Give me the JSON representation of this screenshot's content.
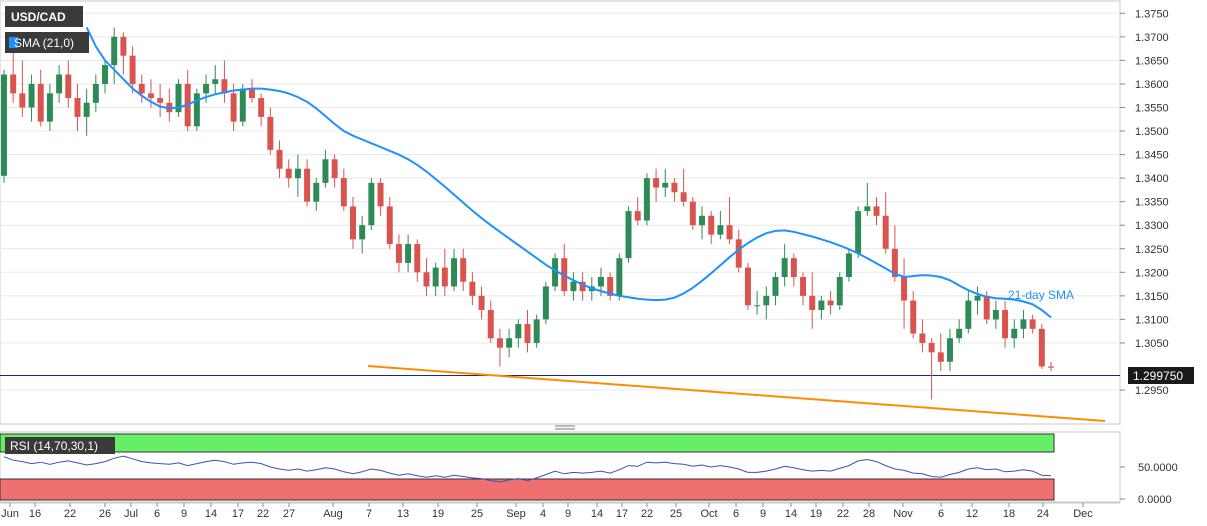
{
  "chart_data": {
    "type": "candlestick",
    "symbol_label": "USD/CAD",
    "sma_label": "SMA (21,0)",
    "sma_annotation": "21-day SMA",
    "current_price": "1.299750",
    "current_value": 1.29975,
    "price_axis": {
      "min": 1.288,
      "max": 1.3774,
      "ticks": [
        "1.3750",
        "1.3700",
        "1.3650",
        "1.3600",
        "1.3550",
        "1.3500",
        "1.3450",
        "1.3400",
        "1.3350",
        "1.3300",
        "1.3250",
        "1.3200",
        "1.3150",
        "1.3100",
        "1.3050",
        "1.2950"
      ]
    },
    "date_ticks": [
      "Jun",
      "16",
      "22",
      "26",
      "Jul",
      "6",
      "9",
      "14",
      "17",
      "22",
      "27",
      "Aug",
      "7",
      "13",
      "19",
      "25",
      "Sep",
      "4",
      "9",
      "14",
      "17",
      "22",
      "25",
      "Oct",
      "6",
      "9",
      "14",
      "19",
      "22",
      "28",
      "Nov",
      "6",
      "12",
      "18",
      "24",
      "Dec"
    ],
    "colors": {
      "up": "#2e8b57",
      "down": "#d9534f",
      "sma": "#1e90ff",
      "trend": "#ff8c00",
      "rsi_line": "#3b4fc4",
      "overbought": "#66ee66",
      "oversold": "#f07070"
    },
    "candles": [
      [
        1.3405,
        1.363,
        1.339,
        1.362
      ],
      [
        1.362,
        1.368,
        1.356,
        1.358
      ],
      [
        1.358,
        1.365,
        1.353,
        1.355
      ],
      [
        1.355,
        1.362,
        1.352,
        1.36
      ],
      [
        1.36,
        1.363,
        1.351,
        1.352
      ],
      [
        1.352,
        1.36,
        1.35,
        1.358
      ],
      [
        1.358,
        1.364,
        1.356,
        1.362
      ],
      [
        1.362,
        1.365,
        1.355,
        1.357
      ],
      [
        1.357,
        1.36,
        1.35,
        1.353
      ],
      [
        1.353,
        1.359,
        1.349,
        1.356
      ],
      [
        1.356,
        1.362,
        1.354,
        1.36
      ],
      [
        1.36,
        1.365,
        1.358,
        1.364
      ],
      [
        1.364,
        1.372,
        1.36,
        1.37
      ],
      [
        1.37,
        1.371,
        1.362,
        1.366
      ],
      [
        1.366,
        1.368,
        1.358,
        1.36
      ],
      [
        1.36,
        1.362,
        1.356,
        1.358
      ],
      [
        1.358,
        1.361,
        1.355,
        1.357
      ],
      [
        1.357,
        1.36,
        1.353,
        1.356
      ],
      [
        1.356,
        1.359,
        1.352,
        1.354
      ],
      [
        1.354,
        1.361,
        1.353,
        1.36
      ],
      [
        1.36,
        1.363,
        1.35,
        1.351
      ],
      [
        1.351,
        1.359,
        1.35,
        1.358
      ],
      [
        1.358,
        1.362,
        1.356,
        1.36
      ],
      [
        1.36,
        1.364,
        1.358,
        1.361
      ],
      [
        1.361,
        1.365,
        1.356,
        1.358
      ],
      [
        1.358,
        1.36,
        1.35,
        1.352
      ],
      [
        1.352,
        1.36,
        1.351,
        1.359
      ],
      [
        1.359,
        1.361,
        1.356,
        1.357
      ],
      [
        1.357,
        1.358,
        1.351,
        1.353
      ],
      [
        1.353,
        1.355,
        1.345,
        1.346
      ],
      [
        1.346,
        1.348,
        1.34,
        1.342
      ],
      [
        1.342,
        1.344,
        1.338,
        1.34
      ],
      [
        1.34,
        1.345,
        1.336,
        1.342
      ],
      [
        1.342,
        1.344,
        1.334,
        1.335
      ],
      [
        1.335,
        1.34,
        1.333,
        1.339
      ],
      [
        1.339,
        1.346,
        1.338,
        1.344
      ],
      [
        1.344,
        1.345,
        1.338,
        1.34
      ],
      [
        1.34,
        1.342,
        1.333,
        1.334
      ],
      [
        1.334,
        1.336,
        1.325,
        1.327
      ],
      [
        1.327,
        1.332,
        1.324,
        1.33
      ],
      [
        1.33,
        1.34,
        1.329,
        1.339
      ],
      [
        1.339,
        1.34,
        1.332,
        1.334
      ],
      [
        1.334,
        1.336,
        1.325,
        1.326
      ],
      [
        1.326,
        1.328,
        1.32,
        1.322
      ],
      [
        1.322,
        1.328,
        1.32,
        1.326
      ],
      [
        1.326,
        1.327,
        1.318,
        1.32
      ],
      [
        1.32,
        1.323,
        1.315,
        1.317
      ],
      [
        1.317,
        1.322,
        1.315,
        1.321
      ],
      [
        1.321,
        1.325,
        1.315,
        1.317
      ],
      [
        1.317,
        1.325,
        1.316,
        1.323
      ],
      [
        1.323,
        1.325,
        1.316,
        1.318
      ],
      [
        1.318,
        1.32,
        1.313,
        1.315
      ],
      [
        1.315,
        1.317,
        1.31,
        1.312
      ],
      [
        1.312,
        1.314,
        1.305,
        1.306
      ],
      [
        1.306,
        1.308,
        1.3,
        1.304
      ],
      [
        1.304,
        1.308,
        1.302,
        1.306
      ],
      [
        1.306,
        1.31,
        1.304,
        1.309
      ],
      [
        1.309,
        1.312,
        1.303,
        1.305
      ],
      [
        1.305,
        1.311,
        1.304,
        1.31
      ],
      [
        1.31,
        1.318,
        1.309,
        1.317
      ],
      [
        1.317,
        1.324,
        1.316,
        1.323
      ],
      [
        1.323,
        1.326,
        1.315,
        1.316
      ],
      [
        1.316,
        1.32,
        1.314,
        1.318
      ],
      [
        1.318,
        1.32,
        1.314,
        1.316
      ],
      [
        1.316,
        1.319,
        1.314,
        1.317
      ],
      [
        1.317,
        1.321,
        1.315,
        1.319
      ],
      [
        1.319,
        1.32,
        1.314,
        1.315
      ],
      [
        1.315,
        1.324,
        1.314,
        1.323
      ],
      [
        1.323,
        1.334,
        1.322,
        1.333
      ],
      [
        1.333,
        1.336,
        1.33,
        1.331
      ],
      [
        1.331,
        1.341,
        1.33,
        1.34
      ],
      [
        1.34,
        1.342,
        1.335,
        1.338
      ],
      [
        1.338,
        1.342,
        1.336,
        1.339
      ],
      [
        1.339,
        1.34,
        1.335,
        1.337
      ],
      [
        1.337,
        1.342,
        1.334,
        1.335
      ],
      [
        1.335,
        1.336,
        1.329,
        1.33
      ],
      [
        1.33,
        1.334,
        1.327,
        1.332
      ],
      [
        1.332,
        1.333,
        1.326,
        1.328
      ],
      [
        1.328,
        1.333,
        1.327,
        1.33
      ],
      [
        1.33,
        1.336,
        1.326,
        1.327
      ],
      [
        1.327,
        1.329,
        1.32,
        1.321
      ],
      [
        1.321,
        1.322,
        1.312,
        1.313
      ],
      [
        1.313,
        1.316,
        1.311,
        1.313
      ],
      [
        1.313,
        1.317,
        1.31,
        1.315
      ],
      [
        1.315,
        1.32,
        1.313,
        1.319
      ],
      [
        1.319,
        1.326,
        1.317,
        1.323
      ],
      [
        1.323,
        1.324,
        1.317,
        1.319
      ],
      [
        1.319,
        1.32,
        1.313,
        1.315
      ],
      [
        1.315,
        1.32,
        1.308,
        1.312
      ],
      [
        1.312,
        1.315,
        1.31,
        1.314
      ],
      [
        1.314,
        1.316,
        1.311,
        1.313
      ],
      [
        1.313,
        1.32,
        1.312,
        1.319
      ],
      [
        1.319,
        1.325,
        1.318,
        1.324
      ],
      [
        1.324,
        1.334,
        1.323,
        1.333
      ],
      [
        1.333,
        1.339,
        1.332,
        1.334
      ],
      [
        1.334,
        1.336,
        1.33,
        1.332
      ],
      [
        1.332,
        1.337,
        1.324,
        1.325
      ],
      [
        1.325,
        1.33,
        1.318,
        1.319
      ],
      [
        1.319,
        1.323,
        1.308,
        1.314
      ],
      [
        1.314,
        1.316,
        1.306,
        1.307
      ],
      [
        1.307,
        1.31,
        1.303,
        1.305
      ],
      [
        1.305,
        1.306,
        1.293,
        1.303
      ],
      [
        1.303,
        1.307,
        1.299,
        1.301
      ],
      [
        1.301,
        1.308,
        1.299,
        1.306
      ],
      [
        1.306,
        1.31,
        1.305,
        1.308
      ],
      [
        1.308,
        1.316,
        1.307,
        1.314
      ],
      [
        1.314,
        1.317,
        1.311,
        1.315
      ],
      [
        1.315,
        1.316,
        1.309,
        1.31
      ],
      [
        1.31,
        1.314,
        1.308,
        1.312
      ],
      [
        1.312,
        1.314,
        1.304,
        1.306
      ],
      [
        1.306,
        1.31,
        1.304,
        1.308
      ],
      [
        1.308,
        1.312,
        1.306,
        1.31
      ],
      [
        1.31,
        1.311,
        1.307,
        1.308
      ],
      [
        1.308,
        1.309,
        1.2995,
        1.3
      ],
      [
        1.3,
        1.301,
        1.299,
        1.29975
      ]
    ],
    "sma": [
      1.372,
      1.368,
      1.365,
      1.363,
      1.361,
      1.359,
      1.3575,
      1.3562,
      1.3552,
      1.3548,
      1.355,
      1.3556,
      1.3565,
      1.3572,
      1.3578,
      1.3582,
      1.3586,
      1.3588,
      1.359,
      1.359,
      1.3588,
      1.3585,
      1.358,
      1.3572,
      1.3562,
      1.3548,
      1.3532,
      1.3515,
      1.35,
      1.349,
      1.3482,
      1.3474,
      1.3466,
      1.3458,
      1.345,
      1.344,
      1.3428,
      1.3414,
      1.3398,
      1.3382,
      1.3365,
      1.3348,
      1.3331,
      1.3315,
      1.33,
      1.3286,
      1.3272,
      1.3258,
      1.3244,
      1.323,
      1.3216,
      1.3204,
      1.3193,
      1.3183,
      1.3174,
      1.3166,
      1.316,
      1.3155,
      1.315,
      1.3147,
      1.3144,
      1.3142,
      1.3141,
      1.3142,
      1.3146,
      1.3155,
      1.3167,
      1.3182,
      1.3198,
      1.3215,
      1.3232,
      1.3248,
      1.3262,
      1.3274,
      1.3283,
      1.3288,
      1.3289,
      1.3286,
      1.3281,
      1.3276,
      1.327,
      1.3264,
      1.3257,
      1.3249,
      1.324,
      1.323,
      1.3219,
      1.3208,
      1.3197,
      1.319,
      1.3192,
      1.3194,
      1.3193,
      1.319,
      1.3183,
      1.3172,
      1.3162,
      1.3154,
      1.3148,
      1.3145,
      1.3144,
      1.3142,
      1.3138,
      1.3132,
      1.312,
      1.3104
    ],
    "rsi_axis": {
      "min": 0,
      "max": 100,
      "ticks": [
        "50.0000",
        "0.0000"
      ]
    },
    "rsi_label": "RSI (14,70,30,1)",
    "rsi": [
      65,
      60,
      58,
      55,
      57,
      54,
      57,
      59,
      56,
      53,
      55,
      58,
      63,
      66,
      62,
      58,
      56,
      55,
      54,
      56,
      52,
      55,
      58,
      60,
      58,
      54,
      56,
      57,
      55,
      50,
      47,
      45,
      47,
      44,
      46,
      49,
      47,
      43,
      40,
      43,
      47,
      45,
      41,
      38,
      40,
      37,
      35,
      37,
      35,
      38,
      36,
      34,
      33,
      30,
      28,
      31,
      33,
      30,
      34,
      39,
      44,
      40,
      42,
      41,
      42,
      44,
      41,
      46,
      52,
      51,
      57,
      56,
      57,
      55,
      54,
      51,
      53,
      50,
      52,
      50,
      47,
      42,
      42,
      44,
      47,
      51,
      49,
      46,
      44,
      45,
      44,
      48,
      52,
      59,
      61,
      58,
      52,
      47,
      45,
      41,
      40,
      36,
      35,
      39,
      42,
      47,
      49,
      46,
      47,
      43,
      44,
      46,
      44,
      38,
      37
    ]
  }
}
